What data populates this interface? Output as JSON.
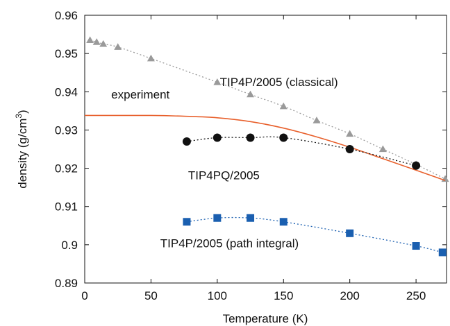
{
  "chart_data": {
    "type": "line",
    "title": "",
    "xlabel": "Temperature (K)",
    "ylabel": {
      "prefix": "density (g/cm",
      "superscript": "3",
      "suffix": ")"
    },
    "xlim": [
      0,
      273
    ],
    "ylim": [
      0.89,
      0.96
    ],
    "xticks": [
      0,
      50,
      100,
      150,
      200,
      250
    ],
    "yticks": [
      0.89,
      0.9,
      0.91,
      0.92,
      0.93,
      0.94,
      0.95,
      0.96
    ],
    "ytick_labels": [
      "0.89",
      "0.9",
      "0.91",
      "0.92",
      "0.93",
      "0.94",
      "0.95",
      "0.96"
    ],
    "grid": false,
    "legend": "none",
    "series": [
      {
        "name": "TIP4P/2005 (classical)",
        "marker": "triangle",
        "color": "#9a9a9a",
        "line_style": "dotted",
        "x": [
          4,
          9,
          14,
          25,
          50,
          100,
          125,
          150,
          175,
          200,
          225,
          250,
          272
        ],
        "y": [
          0.9535,
          0.953,
          0.9525,
          0.9517,
          0.9487,
          0.9425,
          0.9393,
          0.9362,
          0.9325,
          0.929,
          0.925,
          0.921,
          0.9172
        ]
      },
      {
        "name": "experiment",
        "marker": "none",
        "color": "#e8602c",
        "line_style": "solid",
        "x": [
          0,
          25,
          50,
          75,
          100,
          125,
          150,
          175,
          200,
          225,
          250,
          272
        ],
        "y": [
          0.9338,
          0.9338,
          0.9338,
          0.9336,
          0.9332,
          0.9322,
          0.9305,
          0.9282,
          0.9255,
          0.9225,
          0.9195,
          0.9168
        ]
      },
      {
        "name": "TIP4PQ/2005",
        "marker": "circle",
        "color": "#111111",
        "line_style": "dotted",
        "x": [
          77,
          100,
          125,
          150,
          200,
          250
        ],
        "y": [
          0.927,
          0.928,
          0.928,
          0.928,
          0.925,
          0.9207
        ]
      },
      {
        "name": "TIP4P/2005 (path integral)",
        "marker": "square",
        "color": "#1a5fb0",
        "line_style": "dotted",
        "x": [
          77,
          100,
          125,
          150,
          200,
          250,
          270
        ],
        "y": [
          0.906,
          0.907,
          0.907,
          0.906,
          0.903,
          0.8997,
          0.898
        ]
      }
    ],
    "annotations": [
      {
        "id": "classical",
        "text": "TIP4P/2005 (classical)",
        "x": 102,
        "y": 0.9415
      },
      {
        "id": "experiment",
        "text": "experiment",
        "x": 20,
        "y": 0.9382
      },
      {
        "id": "tip4pq",
        "text": "TIP4PQ/2005",
        "x": 78,
        "y": 0.9171
      },
      {
        "id": "pathint",
        "text": "TIP4P/2005 (path integral)",
        "x": 57,
        "y": 0.8993
      }
    ]
  }
}
